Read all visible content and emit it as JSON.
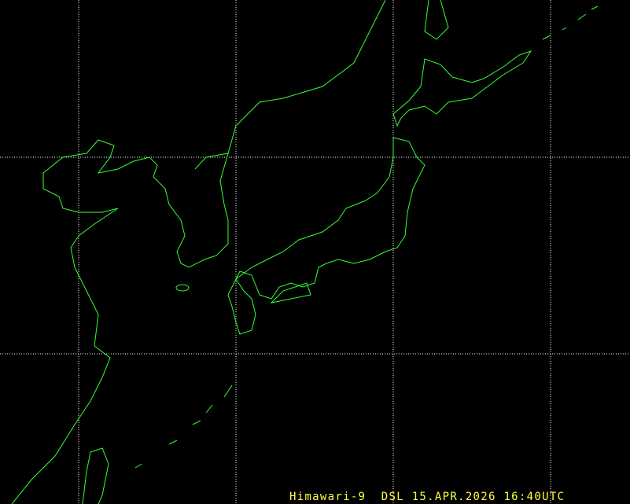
{
  "satellite": "Himawari-9",
  "source": "DSL",
  "date": "15.APR.2026",
  "time": "16:40UTC",
  "colors": {
    "background": "#000000",
    "coastline": "#33ff33",
    "grid": "#ffffff",
    "caption": "#ffff40"
  }
}
